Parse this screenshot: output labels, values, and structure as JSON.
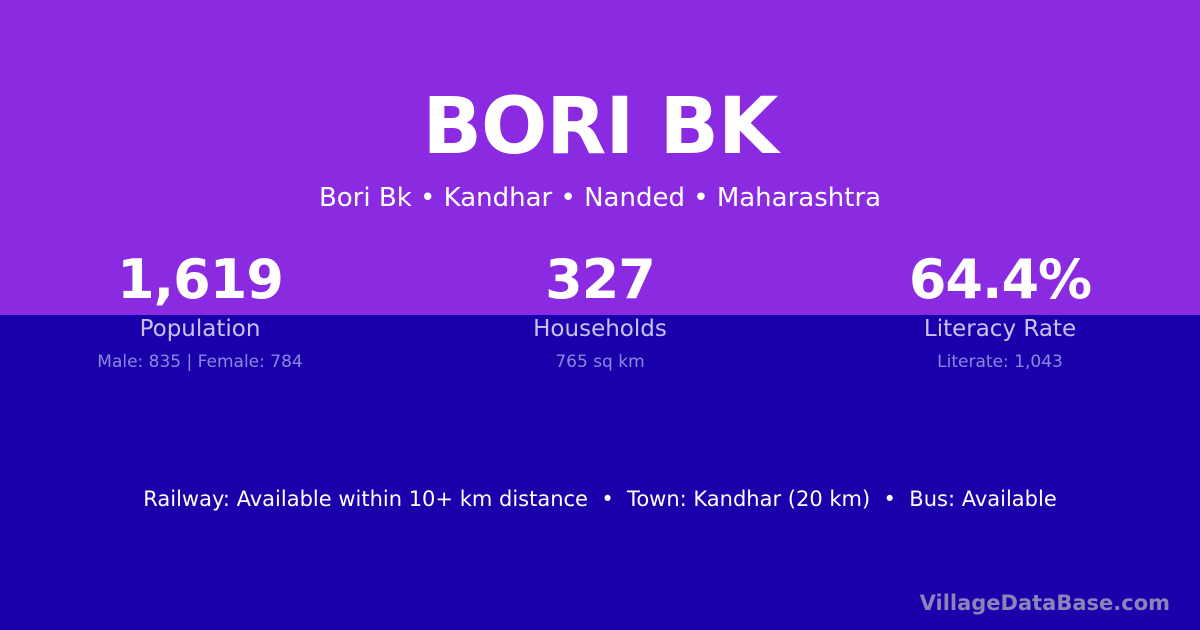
{
  "village": {
    "title": "BORI BK",
    "breadcrumb": "Bori Bk • Kandhar • Nanded • Maharashtra"
  },
  "stats": [
    {
      "value": "1,619",
      "label": "Population",
      "detail": "Male: 835 | Female: 784"
    },
    {
      "value": "327",
      "label": "Households",
      "detail": "765 sq km"
    },
    {
      "value": "64.4%",
      "label": "Literacy Rate",
      "detail": "Literate: 1,043"
    }
  ],
  "facts": "Railway: Available within 10+ km distance  •  Town: Kandhar (20 km)  •  Bus: Available",
  "brand": "VillageDataBase.com",
  "colors": {
    "top_background": "#8a2be2",
    "bottom_background": "#1a00ab"
  }
}
